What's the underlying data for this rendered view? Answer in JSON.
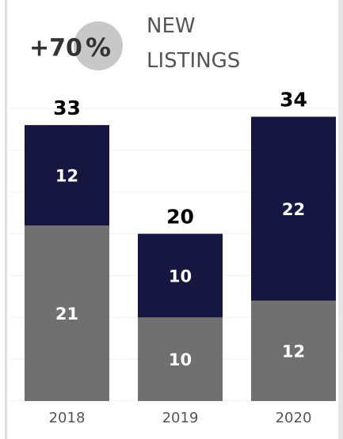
{
  "chart_data": {
    "type": "stacked_bar",
    "title": "NEW LISTINGS",
    "kpi": "+70",
    "kpi_unit": "%",
    "categories": [
      "2018",
      "2019",
      "2020"
    ],
    "series": [
      {
        "color": "#707070",
        "values": [
          21,
          10,
          12
        ]
      },
      {
        "color": "#161640",
        "values": [
          12,
          10,
          22
        ]
      }
    ],
    "totals": [
      33,
      20,
      34
    ],
    "ylim": [
      0,
      35
    ],
    "yticks": [
      0,
      5,
      10,
      15,
      20,
      25,
      30,
      35
    ],
    "grid": true
  }
}
